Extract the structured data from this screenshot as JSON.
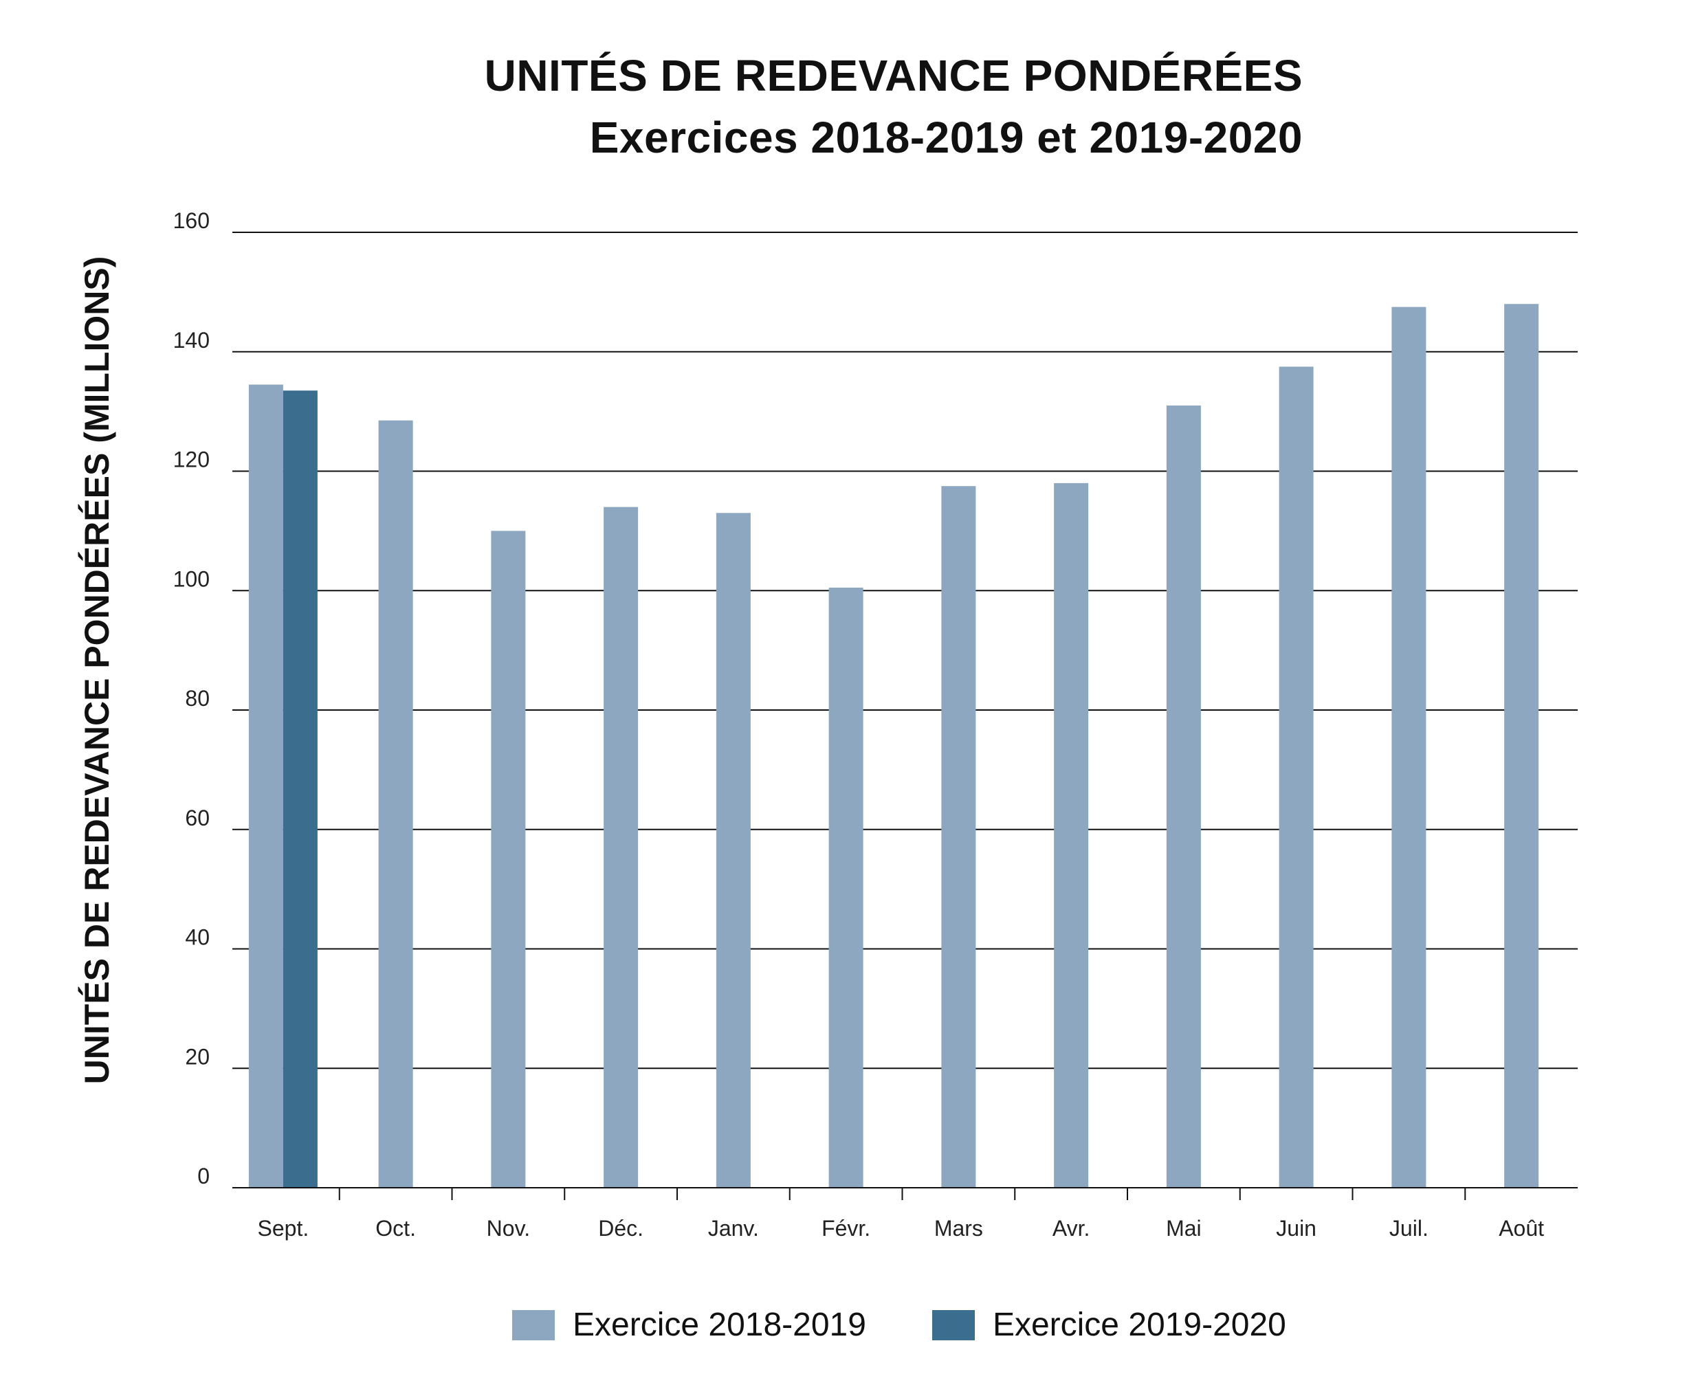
{
  "chart_data": {
    "type": "bar",
    "title": "UNITÉS DE REDEVANCE PONDÉRÉES",
    "subtitle": "Exercices 2018-2019 et 2019-2020",
    "xlabel": "",
    "ylabel": "UNITÉS DE REDEVANCE PONDÉRÉES (MILLIONS)",
    "ylim": [
      0,
      160
    ],
    "yticks": [
      "0",
      "20",
      "40",
      "60",
      "80",
      "100",
      "120",
      "140",
      "160"
    ],
    "grid": true,
    "legend_position": "bottom",
    "categories": [
      "Sept.",
      "Oct.",
      "Nov.",
      "Déc.",
      "Janv.",
      "Févr.",
      "Mars",
      "Avr.",
      "Mai",
      "Juin",
      "Juil.",
      "Août"
    ],
    "series": [
      {
        "name": "Exercice 2018-2019",
        "color": "#8ca7bf",
        "values": [
          134.5,
          128.5,
          110,
          114,
          113,
          100.5,
          117.5,
          118,
          131,
          137.5,
          147.5,
          148
        ]
      },
      {
        "name": "Exercice 2019-2020",
        "color": "#3b6d8e",
        "values": [
          133.5,
          null,
          null,
          null,
          null,
          null,
          null,
          null,
          null,
          null,
          null,
          null
        ]
      }
    ]
  }
}
